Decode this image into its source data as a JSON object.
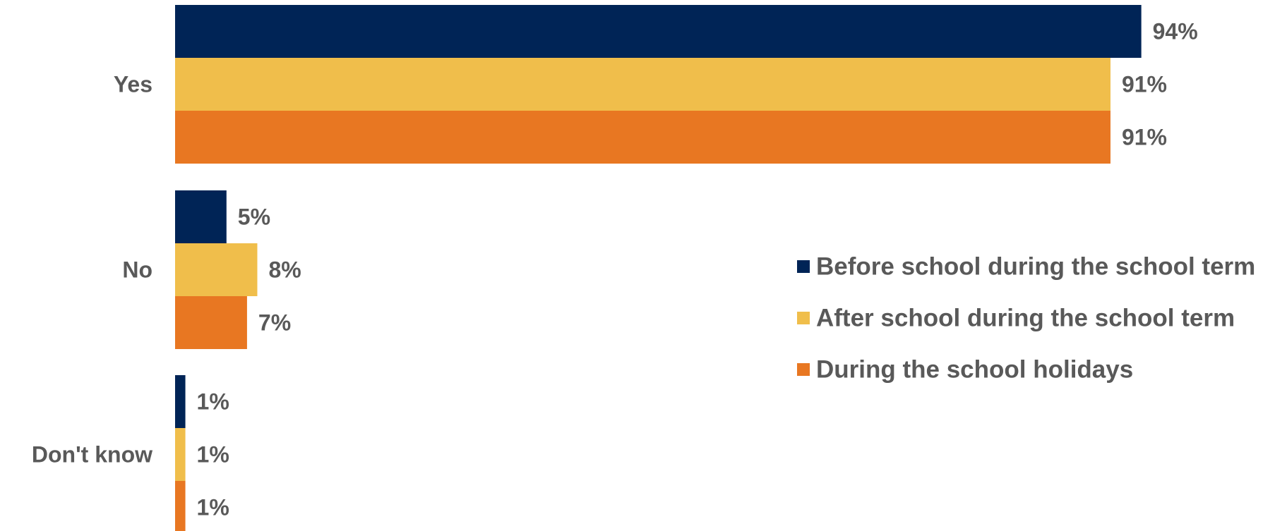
{
  "chart_data": {
    "type": "bar",
    "orientation": "horizontal",
    "categories": [
      "Yes",
      "No",
      "Don't know"
    ],
    "series": [
      {
        "name": "Before school during the school term",
        "values": [
          94,
          5,
          1
        ],
        "color": "#002456"
      },
      {
        "name": "After school during the school term",
        "values": [
          91,
          8,
          1
        ],
        "color": "#F0BE4B"
      },
      {
        "name": "During the school holidays",
        "values": [
          91,
          7,
          1
        ],
        "color": "#E87722"
      }
    ],
    "value_suffix": "%",
    "xlim": [
      0,
      100
    ],
    "grid": false,
    "legend_position": "right"
  }
}
